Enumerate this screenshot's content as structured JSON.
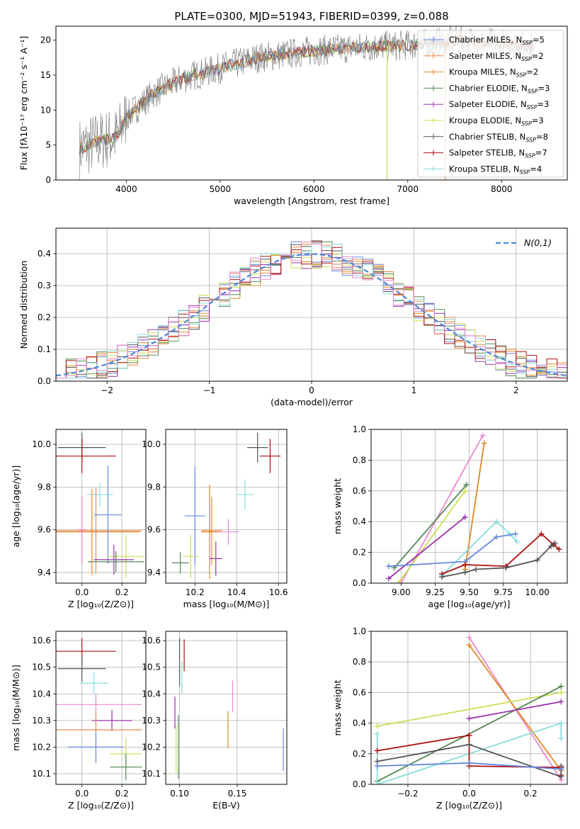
{
  "colors": {
    "Chabrier MILES": "#6688dd",
    "Salpeter MILES": "#ee8844",
    "Kroupa MILES": "#dd8822",
    "Chabrier ELODIE": "#558855",
    "Salpeter ELODIE": "#9933aa",
    "Kroupa ELODIE": "#ccdd55",
    "Chabrier STELIB": "#555555",
    "Salpeter STELIB": "#aa1111",
    "Kroupa STELIB": "#88dddd",
    "pink": "#e888cc",
    "normal": "#4f86d6"
  },
  "chart_data": [
    {
      "id": "spectrum",
      "type": "line",
      "title": "PLATE=0300, MJD=51943, FIBERID=0399, z=0.088",
      "xlabel": "wavelength [Angstrom, rest frame]",
      "ylabel": "Flux [fλ10⁻¹⁷ erg cm⁻² s⁻¹ A⁻¹]",
      "xlim": [
        3250,
        8700
      ],
      "ylim": [
        0,
        22
      ],
      "xticks": [
        4000,
        5000,
        6000,
        7000,
        8000
      ],
      "yticks": [
        0,
        5,
        10,
        15,
        20
      ],
      "grid": false,
      "legend_position": "top-right",
      "legend": [
        {
          "label": "Chabrier MILES, N",
          "sub": "SSP",
          "suffix": "=5",
          "color_key": "Chabrier MILES"
        },
        {
          "label": "Salpeter MILES, N",
          "sub": "SSP",
          "suffix": "=2",
          "color_key": "Salpeter MILES"
        },
        {
          "label": "Kroupa MILES, N",
          "sub": "SSP",
          "suffix": "=2",
          "color_key": "Kroupa MILES"
        },
        {
          "label": "Chabrier ELODIE, N",
          "sub": "SSP",
          "suffix": "=3",
          "color_key": "Chabrier ELODIE"
        },
        {
          "label": "Salpeter ELODIE, N",
          "sub": "SSP",
          "suffix": "=3",
          "color_key": "Salpeter ELODIE"
        },
        {
          "label": "Kroupa ELODIE, N",
          "sub": "SSP",
          "suffix": "=3",
          "color_key": "Kroupa ELODIE"
        },
        {
          "label": "Chabrier STELIB, N",
          "sub": "SSP",
          "suffix": "=8",
          "color_key": "Chabrier STELIB"
        },
        {
          "label": "Salpeter STELIB, N",
          "sub": "SSP",
          "suffix": "=7",
          "color_key": "Salpeter STELIB"
        },
        {
          "label": "Kroupa STELIB, N",
          "sub": "SSP",
          "suffix": "=4",
          "color_key": "Kroupa STELIB"
        }
      ],
      "continuum_knots": {
        "x": [
          3500,
          3700,
          3900,
          4000,
          4300,
          4600,
          5000,
          5400,
          6000,
          6500,
          7000,
          7400,
          7500,
          8000,
          8400
        ],
        "y": [
          4.5,
          5.5,
          6.2,
          9.0,
          12.5,
          14.5,
          16.0,
          17.5,
          18.5,
          19.0,
          19.3,
          19.7,
          20.0,
          19.5,
          19.0
        ]
      },
      "spikes": [
        {
          "x": 6780,
          "color_key": "Kroupa ELODIE"
        },
        {
          "x": 7400,
          "color_key": "Salpeter MILES"
        }
      ]
    },
    {
      "id": "residuals",
      "type": "bar",
      "xlabel": "(data-model)/error",
      "ylabel": "Normed distribution",
      "xlim": [
        -2.5,
        2.5
      ],
      "ylim": [
        0,
        0.48
      ],
      "xticks": [
        -2,
        -1,
        0,
        1,
        2
      ],
      "yticks": [
        0.0,
        0.1,
        0.2,
        0.3,
        0.4
      ],
      "grid": true,
      "legend_position": "top-right",
      "legend_label": "N(0,1)",
      "bin_width": 0.1,
      "bin_start": -2.5
    },
    {
      "id": "age-Z",
      "type": "scatter",
      "xlabel": "Z [log₁₀(Z/Z⊙)]",
      "ylabel": "age  [log₁₀(age/yr)]",
      "xlim": [
        -0.13,
        0.32
      ],
      "ylim": [
        9.35,
        10.07
      ],
      "xticks": [
        0.0,
        0.2
      ],
      "yticks": [
        9.4,
        9.6,
        9.8,
        10.0
      ],
      "grid": true,
      "points": [
        {
          "x": 0.0,
          "y": 9.985,
          "xerr": 0.12,
          "yerr": 0.07,
          "color_key": "Chabrier STELIB"
        },
        {
          "x": 0.0,
          "y": 9.945,
          "xerr": 0.17,
          "yerr": 0.08,
          "color_key": "Salpeter STELIB"
        },
        {
          "x": 0.09,
          "y": 9.765,
          "xerr": 0.065,
          "yerr": 0.055,
          "color_key": "Kroupa STELIB"
        },
        {
          "x": 0.07,
          "y": 9.595,
          "xerr": 0.23,
          "yerr": 0.2,
          "color_key": "Salpeter MILES"
        },
        {
          "x": 0.05,
          "y": 9.59,
          "xerr": 0.24,
          "yerr": 0.2,
          "color_key": "Kroupa MILES"
        },
        {
          "x": 0.13,
          "y": 9.67,
          "xerr": 0.07,
          "yerr": 0.23,
          "color_key": "Chabrier MILES"
        },
        {
          "x": 0.22,
          "y": 9.475,
          "xerr": 0.095,
          "yerr": 0.1,
          "color_key": "Kroupa ELODIE"
        },
        {
          "x": 0.16,
          "y": 9.46,
          "xerr": 0.1,
          "yerr": 0.07,
          "color_key": "Salpeter ELODIE"
        },
        {
          "x": 0.17,
          "y": 9.45,
          "xerr": 0.14,
          "yerr": 0.05,
          "color_key": "Chabrier ELODIE"
        },
        {
          "x": 0.0,
          "y": 9.6,
          "xerr": 0.02,
          "yerr": 0.16,
          "color_key": "pink"
        }
      ]
    },
    {
      "id": "age-mass",
      "type": "scatter",
      "xlabel": "mass [log₁₀(M/M⊙)]",
      "ylabel": "",
      "xlim": [
        10.06,
        10.64
      ],
      "ylim": [
        9.35,
        10.07
      ],
      "xticks": [
        10.2,
        10.4,
        10.6
      ],
      "yticks": [
        9.4,
        9.6,
        9.8,
        10.0
      ],
      "grid": true,
      "points": [
        {
          "x": 10.5,
          "y": 9.985,
          "xerr": 0.05,
          "yerr": 0.07,
          "color_key": "Chabrier STELIB"
        },
        {
          "x": 10.56,
          "y": 9.945,
          "xerr": 0.05,
          "yerr": 0.08,
          "color_key": "Salpeter STELIB"
        },
        {
          "x": 10.44,
          "y": 9.765,
          "xerr": 0.04,
          "yerr": 0.07,
          "color_key": "Kroupa STELIB"
        },
        {
          "x": 10.36,
          "y": 9.59,
          "xerr": 0.05,
          "yerr": 0.06,
          "color_key": "pink"
        },
        {
          "x": 10.28,
          "y": 9.595,
          "xerr": 0.05,
          "yerr": 0.16,
          "color_key": "Salpeter MILES"
        },
        {
          "x": 10.27,
          "y": 9.59,
          "xerr": 0.04,
          "yerr": 0.22,
          "color_key": "Kroupa MILES"
        },
        {
          "x": 10.2,
          "y": 9.665,
          "xerr": 0.05,
          "yerr": 0.23,
          "color_key": "Chabrier MILES"
        },
        {
          "x": 10.18,
          "y": 9.475,
          "xerr": 0.04,
          "yerr": 0.1,
          "color_key": "Kroupa ELODIE"
        },
        {
          "x": 10.3,
          "y": 9.465,
          "xerr": 0.03,
          "yerr": 0.08,
          "color_key": "Salpeter ELODIE"
        },
        {
          "x": 10.13,
          "y": 9.445,
          "xerr": 0.04,
          "yerr": 0.05,
          "color_key": "Chabrier ELODIE"
        }
      ]
    },
    {
      "id": "weight-age",
      "type": "line",
      "xlabel": "age  [log₁₀(age/yr)]",
      "ylabel": "mass weight",
      "xlim": [
        8.78,
        10.22
      ],
      "ylim": [
        0.0,
        1.0
      ],
      "xticks": [
        9.0,
        9.25,
        9.5,
        9.75,
        10.0
      ],
      "yticks": [
        0.0,
        0.2,
        0.4,
        0.6,
        0.8,
        1.0
      ],
      "grid": true,
      "series": [
        {
          "color_key": "pink",
          "x": [
            9.0,
            9.6
          ],
          "y": [
            0.0,
            0.96
          ]
        },
        {
          "color_key": "Kroupa MILES",
          "x": [
            9.47,
            9.61
          ],
          "y": [
            0.09,
            0.91
          ]
        },
        {
          "color_key": "Chabrier ELODIE",
          "x": [
            8.95,
            9.48
          ],
          "y": [
            0.1,
            0.64
          ]
        },
        {
          "color_key": "Kroupa ELODIE",
          "x": [
            8.98,
            9.47
          ],
          "y": [
            0.0,
            0.6
          ]
        },
        {
          "color_key": "Salpeter ELODIE",
          "x": [
            8.91,
            9.47
          ],
          "y": [
            0.03,
            0.43
          ]
        },
        {
          "color_key": "Kroupa STELIB",
          "x": [
            9.3,
            9.7,
            9.8,
            9.85
          ],
          "y": [
            0.05,
            0.4,
            0.32,
            0.27
          ]
        },
        {
          "color_key": "Chabrier MILES",
          "x": [
            8.91,
            9.47,
            9.7,
            9.84
          ],
          "y": [
            0.11,
            0.14,
            0.3,
            0.32
          ]
        },
        {
          "color_key": "Salpeter STELIB",
          "x": [
            9.3,
            9.47,
            9.77,
            10.03,
            10.12,
            10.16
          ],
          "y": [
            0.06,
            0.12,
            0.11,
            0.32,
            0.25,
            0.22
          ]
        },
        {
          "color_key": "Chabrier STELIB",
          "x": [
            9.3,
            9.47,
            9.55,
            9.77,
            10.0,
            10.1,
            10.13
          ],
          "y": [
            0.04,
            0.07,
            0.09,
            0.1,
            0.15,
            0.24,
            0.26
          ]
        }
      ]
    },
    {
      "id": "mass-Z",
      "type": "scatter",
      "xlabel": "Z [log₁₀(Z/Z⊙)]",
      "ylabel": "mass [log₁₀(M/M⊙)]",
      "xlim": [
        -0.13,
        0.32
      ],
      "ylim": [
        10.06,
        10.635
      ],
      "xticks": [
        0.0,
        0.2
      ],
      "yticks": [
        10.1,
        10.2,
        10.3,
        10.4,
        10.5,
        10.6
      ],
      "grid": true,
      "points": [
        {
          "x": 0.0,
          "y": 10.56,
          "xerr": 0.17,
          "yerr": 0.05,
          "color_key": "Salpeter STELIB"
        },
        {
          "x": 0.0,
          "y": 10.495,
          "xerr": 0.12,
          "yerr": 0.05,
          "color_key": "Chabrier STELIB"
        },
        {
          "x": 0.06,
          "y": 10.44,
          "xerr": 0.07,
          "yerr": 0.04,
          "color_key": "Kroupa STELIB"
        },
        {
          "x": 0.07,
          "y": 10.36,
          "xerr": 0.23,
          "yerr": 0.04,
          "color_key": "pink"
        },
        {
          "x": 0.15,
          "y": 10.3,
          "xerr": 0.1,
          "yerr": 0.04,
          "color_key": "Salpeter ELODIE"
        },
        {
          "x": 0.07,
          "y": 10.265,
          "xerr": 0.23,
          "yerr": 0.07,
          "color_key": "Salpeter MILES"
        },
        {
          "x": 0.07,
          "y": 10.2,
          "xerr": 0.14,
          "yerr": 0.06,
          "color_key": "Chabrier MILES"
        },
        {
          "x": 0.22,
          "y": 10.175,
          "xerr": 0.08,
          "yerr": 0.06,
          "color_key": "Kroupa ELODIE"
        },
        {
          "x": 0.22,
          "y": 10.125,
          "xerr": 0.08,
          "yerr": 0.05,
          "color_key": "Chabrier ELODIE"
        }
      ]
    },
    {
      "id": "mass-ebv",
      "type": "scatter",
      "xlabel": "E(B-V)",
      "ylabel": "",
      "xlim": [
        0.088,
        0.193
      ],
      "ylim": [
        10.06,
        10.635
      ],
      "xticks": [
        0.1,
        0.15
      ],
      "yticks": [
        10.1,
        10.2,
        10.3,
        10.4,
        10.5,
        10.6
      ],
      "grid": true,
      "points": [
        {
          "x": 0.104,
          "y": 10.545,
          "xerr": 0,
          "yerr": 0.06,
          "color_key": "Salpeter STELIB"
        },
        {
          "x": 0.1,
          "y": 10.52,
          "xerr": 0,
          "yerr": 0.09,
          "color_key": "Chabrier STELIB"
        },
        {
          "x": 0.102,
          "y": 10.46,
          "xerr": 0,
          "yerr": 0.06,
          "color_key": "Kroupa STELIB"
        },
        {
          "x": 0.146,
          "y": 10.39,
          "xerr": 0,
          "yerr": 0.06,
          "color_key": "pink"
        },
        {
          "x": 0.096,
          "y": 10.33,
          "xerr": 0,
          "yerr": 0.06,
          "color_key": "Salpeter ELODIE"
        },
        {
          "x": 0.142,
          "y": 10.265,
          "xerr": 0,
          "yerr": 0.07,
          "color_key": "Kroupa MILES"
        },
        {
          "x": 0.19,
          "y": 10.19,
          "xerr": 0,
          "yerr": 0.08,
          "color_key": "Chabrier MILES"
        },
        {
          "x": 0.097,
          "y": 10.19,
          "xerr": 0,
          "yerr": 0.09,
          "color_key": "Kroupa ELODIE"
        },
        {
          "x": 0.099,
          "y": 10.2,
          "xerr": 0,
          "yerr": 0.12,
          "color_key": "Chabrier ELODIE"
        }
      ]
    },
    {
      "id": "weight-Z",
      "type": "line",
      "xlabel": "Z [log₁₀(Z/Z⊙)]",
      "ylabel": "mass weight",
      "xlim": [
        -0.32,
        0.32
      ],
      "ylim": [
        0.0,
        1.0
      ],
      "xticks": [
        -0.2,
        0.0,
        0.2
      ],
      "yticks": [
        0.0,
        0.2,
        0.4,
        0.6,
        0.8,
        1.0
      ],
      "grid": true,
      "series": [
        {
          "color_key": "pink",
          "x": [
            0.0,
            0.3
          ],
          "y": [
            0.96,
            0.03
          ]
        },
        {
          "color_key": "Kroupa MILES",
          "x": [
            0.0,
            0.3
          ],
          "y": [
            0.91,
            0.09
          ]
        },
        {
          "color_key": "Kroupa ELODIE",
          "x": [
            -0.3,
            0.3
          ],
          "y": [
            0.38,
            0.6
          ]
        },
        {
          "color_key": "Chabrier ELODIE",
          "x": [
            -0.3,
            0.3
          ],
          "y": [
            0.02,
            0.64
          ]
        },
        {
          "color_key": "Salpeter ELODIE",
          "x": [
            0.0,
            0.3
          ],
          "y": [
            0.43,
            0.54
          ]
        },
        {
          "color_key": "Kroupa STELIB",
          "x": [
            -0.3,
            -0.3,
            0.3,
            0.3
          ],
          "y": [
            0.33,
            0.0,
            0.4,
            0.3
          ]
        },
        {
          "color_key": "Salpeter STELIB",
          "x": [
            -0.3,
            0.0,
            0.0,
            0.3,
            0.3
          ],
          "y": [
            0.22,
            0.32,
            0.12,
            0.11,
            0.06
          ]
        },
        {
          "color_key": "Chabrier STELIB",
          "x": [
            -0.3,
            0.0,
            0.3,
            0.3
          ],
          "y": [
            0.15,
            0.26,
            0.05,
            0.12
          ]
        },
        {
          "color_key": "Chabrier MILES",
          "x": [
            -0.3,
            0.0,
            0.3
          ],
          "y": [
            0.12,
            0.14,
            0.1
          ]
        }
      ]
    }
  ]
}
